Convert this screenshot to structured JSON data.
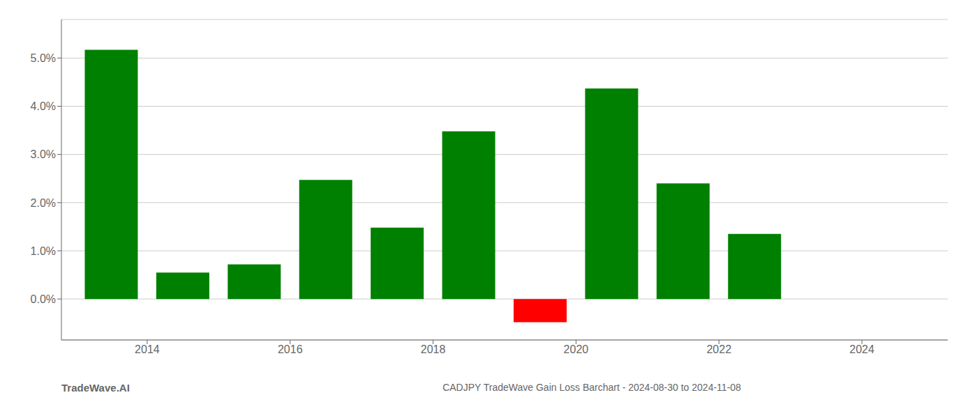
{
  "chart_data": {
    "type": "bar",
    "title": "CADJPY TradeWave Gain Loss Barchart - 2024-08-30 to 2024-11-08",
    "annotations": [
      "TradeWave.AI"
    ],
    "x": [
      2013.5,
      2014.5,
      2015.5,
      2016.5,
      2017.5,
      2018.5,
      2019.5,
      2020.5,
      2021.5,
      2022.5,
      2023.5
    ],
    "values": [
      0.0517,
      0.0055,
      0.0072,
      0.0247,
      0.0148,
      0.0348,
      -0.0048,
      0.0437,
      0.024,
      0.0135,
      0.0
    ],
    "colors": [
      "#008000",
      "#008000",
      "#008000",
      "#008000",
      "#008000",
      "#008000",
      "#ff0000",
      "#008000",
      "#008000",
      "#008000",
      "#008000"
    ],
    "xlim": [
      2012.8,
      2025.2
    ],
    "xticks": [
      2014,
      2016,
      2018,
      2020,
      2022,
      2024
    ],
    "ylim": [
      -0.0085,
      0.058
    ],
    "yticks": [
      {
        "value": 0,
        "label": "0.0%"
      },
      {
        "value": 0.01,
        "label": "1.0%"
      },
      {
        "value": 0.02,
        "label": "2.0%"
      },
      {
        "value": 0.03,
        "label": "3.0%"
      },
      {
        "value": 0.04,
        "label": "4.0%"
      },
      {
        "value": 0.05,
        "label": "5.0%"
      }
    ],
    "grid": true
  }
}
